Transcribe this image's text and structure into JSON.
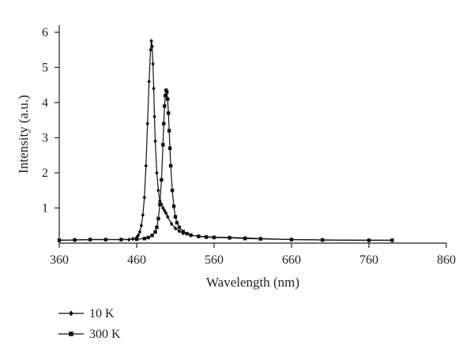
{
  "chart_data": {
    "type": "line",
    "title": "",
    "xlabel": "Wavelength (nm)",
    "ylabel": "Intensity (a.u.)",
    "xlim": [
      360,
      860
    ],
    "ylim": [
      0,
      6.2
    ],
    "xticks": [
      360,
      460,
      560,
      660,
      760,
      860
    ],
    "yticks": [
      1,
      2,
      3,
      4,
      5,
      6
    ],
    "grid": false,
    "legend_position": "bottom-left",
    "series": [
      {
        "name": "10 K",
        "marker": "diamond",
        "color": "#111111",
        "x": [
          360,
          380,
          400,
          420,
          440,
          450,
          455,
          460,
          462,
          464,
          466,
          468,
          470,
          472,
          474,
          476,
          478,
          479,
          480,
          481,
          482,
          483,
          484,
          486,
          488,
          490,
          492,
          494,
          496,
          498,
          500,
          505,
          510,
          515,
          520,
          530,
          540,
          550,
          560,
          580,
          600,
          620,
          660,
          700,
          760,
          790
        ],
        "y": [
          0.08,
          0.09,
          0.1,
          0.1,
          0.1,
          0.1,
          0.12,
          0.16,
          0.22,
          0.32,
          0.5,
          0.8,
          1.3,
          2.2,
          3.4,
          4.6,
          5.5,
          5.75,
          5.6,
          5.1,
          4.4,
          3.6,
          2.9,
          2.0,
          1.5,
          1.2,
          1.1,
          1.0,
          0.92,
          0.85,
          0.75,
          0.55,
          0.42,
          0.34,
          0.28,
          0.22,
          0.2,
          0.18,
          0.17,
          0.16,
          0.15,
          0.13,
          0.1,
          0.09,
          0.08,
          0.08
        ]
      },
      {
        "name": "300 K",
        "marker": "square",
        "color": "#111111",
        "x": [
          360,
          380,
          400,
          420,
          440,
          460,
          470,
          475,
          480,
          484,
          486,
          488,
          490,
          492,
          494,
          495,
          496,
          497,
          498,
          499,
          500,
          501,
          502,
          503,
          504,
          506,
          508,
          510,
          512,
          515,
          520,
          525,
          530,
          540,
          550,
          560,
          580,
          600,
          620,
          660,
          700,
          760,
          790
        ],
        "y": [
          0.08,
          0.09,
          0.1,
          0.1,
          0.1,
          0.11,
          0.13,
          0.16,
          0.22,
          0.32,
          0.45,
          0.7,
          1.1,
          1.8,
          2.8,
          3.4,
          3.9,
          4.2,
          4.35,
          4.3,
          4.1,
          3.7,
          3.2,
          2.7,
          2.2,
          1.5,
          1.05,
          0.75,
          0.58,
          0.45,
          0.33,
          0.27,
          0.23,
          0.19,
          0.17,
          0.16,
          0.15,
          0.13,
          0.12,
          0.1,
          0.09,
          0.08,
          0.08
        ]
      }
    ]
  }
}
